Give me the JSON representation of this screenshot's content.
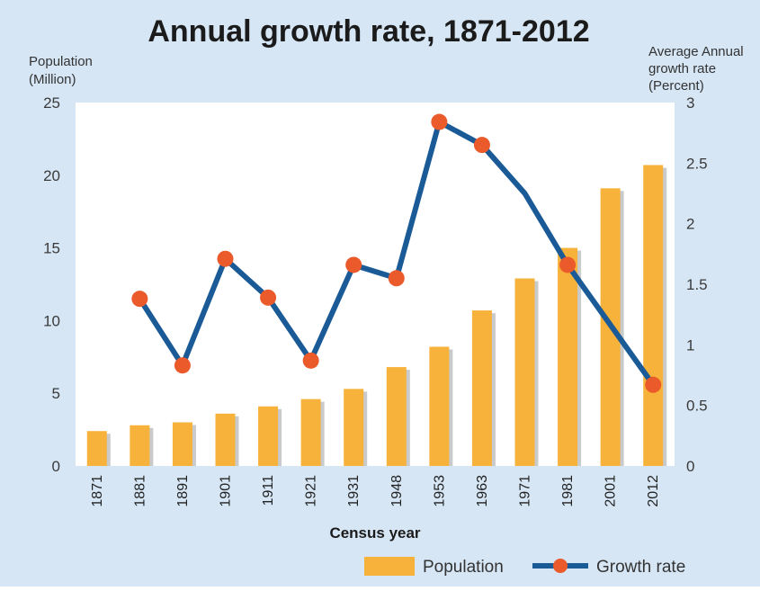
{
  "chart_data": {
    "type": "bar",
    "title": "Annual growth rate, 1871-2012",
    "xlabel": "Census year",
    "ylabel_left": [
      "Population",
      "(Million)"
    ],
    "ylabel_right": [
      "Average Annual",
      "growth rate",
      "(Percent)"
    ],
    "ylim_left": [
      0,
      25
    ],
    "ylim_right": [
      0,
      3
    ],
    "yticks_left": [
      "0",
      "5",
      "10",
      "15",
      "20",
      "25"
    ],
    "yticks_right": [
      "0",
      "0.5",
      "1",
      "1.5",
      "2",
      "2.5",
      "3"
    ],
    "categories": [
      "1871",
      "1881",
      "1891",
      "1901",
      "1911",
      "1921",
      "1931",
      "1948",
      "1953",
      "1963",
      "1971",
      "1981",
      "2001",
      "2012"
    ],
    "series": [
      {
        "name": "Population",
        "type": "bar",
        "axis": "left",
        "values": [
          2.4,
          2.8,
          3.0,
          3.6,
          4.1,
          4.6,
          5.3,
          6.8,
          8.2,
          10.7,
          12.9,
          15.0,
          19.1,
          20.7
        ]
      },
      {
        "name": "Growth rate",
        "type": "line",
        "axis": "right",
        "values": [
          null,
          1.38,
          0.83,
          1.71,
          1.39,
          0.87,
          1.66,
          1.55,
          2.84,
          2.65,
          2.25,
          1.66,
          null,
          0.67
        ],
        "markers": [
          false,
          true,
          true,
          true,
          true,
          true,
          true,
          true,
          true,
          true,
          false,
          true,
          false,
          true
        ]
      }
    ],
    "grid": false,
    "legend": "bottom-right"
  },
  "colors": {
    "background": "#d6e6f5",
    "plot_area": "#ffffff",
    "bar": "#f7b23b",
    "bar_shadow": "#c8cacb",
    "line": "#1a5a96",
    "marker": "#ea5a2b"
  }
}
